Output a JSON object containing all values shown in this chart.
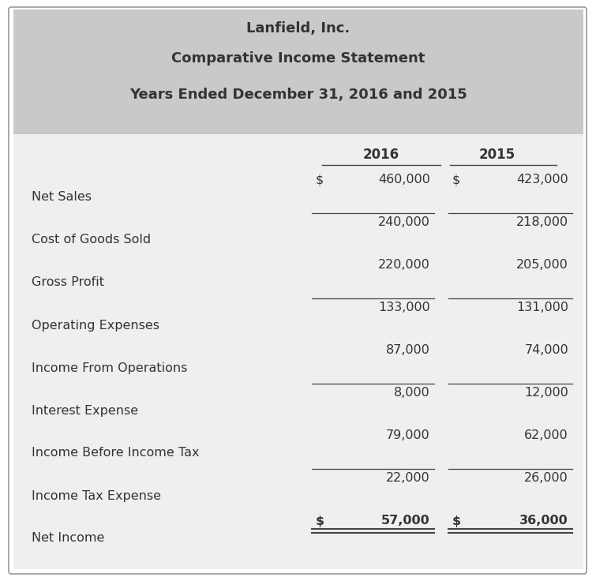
{
  "title_lines": [
    "Lanfield, Inc.",
    "Comparative Income Statement",
    "Years Ended December 31, 2016 and 2015"
  ],
  "col_headers": [
    "2016",
    "2015"
  ],
  "rows": [
    {
      "label": "Net Sales",
      "val2016": "460,000",
      "val2015": "423,000",
      "dollar2016": true,
      "dollar2015": true,
      "bold": false,
      "line_above": false,
      "double_below": false
    },
    {
      "label": "Cost of Goods Sold",
      "val2016": "240,000",
      "val2015": "218,000",
      "dollar2016": false,
      "dollar2015": false,
      "bold": false,
      "line_above": true,
      "double_below": false
    },
    {
      "label": "Gross Profit",
      "val2016": "220,000",
      "val2015": "205,000",
      "dollar2016": false,
      "dollar2015": false,
      "bold": false,
      "line_above": false,
      "double_below": false
    },
    {
      "label": "Operating Expenses",
      "val2016": "133,000",
      "val2015": "131,000",
      "dollar2016": false,
      "dollar2015": false,
      "bold": false,
      "line_above": true,
      "double_below": false
    },
    {
      "label": "Income From Operations",
      "val2016": "87,000",
      "val2015": "74,000",
      "dollar2016": false,
      "dollar2015": false,
      "bold": false,
      "line_above": false,
      "double_below": false
    },
    {
      "label": "Interest Expense",
      "val2016": "8,000",
      "val2015": "12,000",
      "dollar2016": false,
      "dollar2015": false,
      "bold": false,
      "line_above": true,
      "double_below": false
    },
    {
      "label": "Income Before Income Tax",
      "val2016": "79,000",
      "val2015": "62,000",
      "dollar2016": false,
      "dollar2015": false,
      "bold": false,
      "line_above": false,
      "double_below": false
    },
    {
      "label": "Income Tax Expense",
      "val2016": "22,000",
      "val2015": "26,000",
      "dollar2016": false,
      "dollar2015": false,
      "bold": false,
      "line_above": true,
      "double_below": false
    },
    {
      "label": "Net Income",
      "val2016": "57,000",
      "val2015": "36,000",
      "dollar2016": true,
      "dollar2015": true,
      "bold": true,
      "line_above": false,
      "double_below": true
    }
  ],
  "header_bg": "#c9c9c9",
  "body_bg": "#efefef",
  "outer_bg": "#ffffff",
  "border_color": "#999999",
  "text_color": "#333333",
  "line_color": "#444444",
  "font_size_title1": 13,
  "font_size_title2": 13,
  "font_size_title3": 13,
  "font_size_header": 12,
  "font_size_body": 11.5
}
